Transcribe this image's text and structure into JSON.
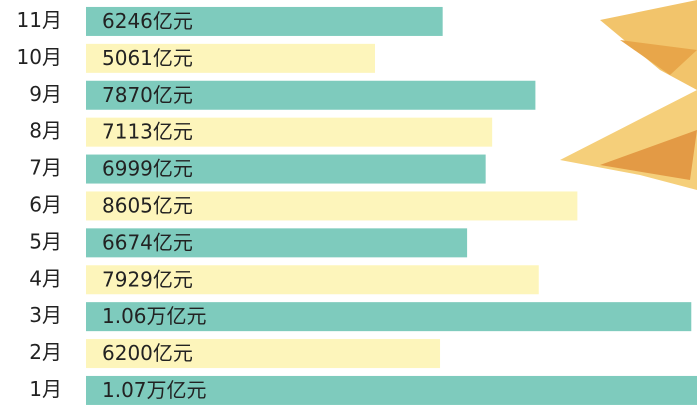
{
  "chart_data": {
    "type": "bar",
    "orientation": "horizontal",
    "categories": [
      "11月",
      "10月",
      "9月",
      "8月",
      "7月",
      "6月",
      "5月",
      "4月",
      "3月",
      "2月",
      "1月"
    ],
    "values": [
      6246,
      5061,
      7870,
      7113,
      6999,
      8605,
      6674,
      7929,
      10600,
      6200,
      10700
    ],
    "value_labels": [
      "6246亿元",
      "5061亿元",
      "7870亿元",
      "7113亿元",
      "6999亿元",
      "8605亿元",
      "6674亿元",
      "7929亿元",
      "1.06万亿元",
      "6200亿元",
      "1.07万亿元"
    ],
    "colors": [
      "#7ecbbd",
      "#fdf5bb",
      "#7ecbbd",
      "#fdf5bb",
      "#7ecbbd",
      "#fdf5bb",
      "#7ecbbd",
      "#fdf5bb",
      "#7ecbbd",
      "#fdf5bb",
      "#7ecbbd"
    ]
  }
}
